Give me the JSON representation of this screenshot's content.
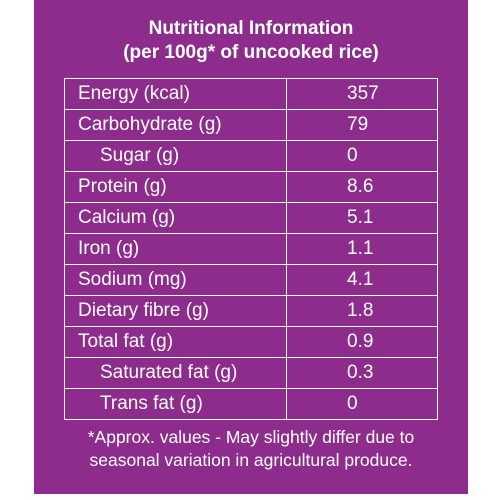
{
  "title": {
    "line1": "Nutritional Information",
    "line2": "(per 100g* of uncooked rice)"
  },
  "rows": [
    {
      "label": "Energy (kcal)",
      "value": "357",
      "indent": false
    },
    {
      "label": "Carbohydrate (g)",
      "value": "79",
      "indent": false
    },
    {
      "label": "Sugar (g)",
      "value": "0",
      "indent": true
    },
    {
      "label": "Protein (g)",
      "value": "8.6",
      "indent": false
    },
    {
      "label": "Calcium (g)",
      "value": "5.1",
      "indent": false
    },
    {
      "label": "Iron (g)",
      "value": "1.1",
      "indent": false
    },
    {
      "label": "Sodium (mg)",
      "value": "4.1",
      "indent": false
    },
    {
      "label": "Dietary fibre (g)",
      "value": "1.8",
      "indent": false
    },
    {
      "label": "Total fat (g)",
      "value": "0.9",
      "indent": false
    },
    {
      "label": "Saturated fat (g)",
      "value": "0.3",
      "indent": true
    },
    {
      "label": "Trans fat (g)",
      "value": "0",
      "indent": true
    }
  ],
  "footnote": {
    "line1": "*Approx. values - May slightly differ due to",
    "line2": "seasonal variation in agricultural produce."
  },
  "colors": {
    "panel_background": "#8e2c8e",
    "text": "#ffffff",
    "border": "#ffffff"
  }
}
